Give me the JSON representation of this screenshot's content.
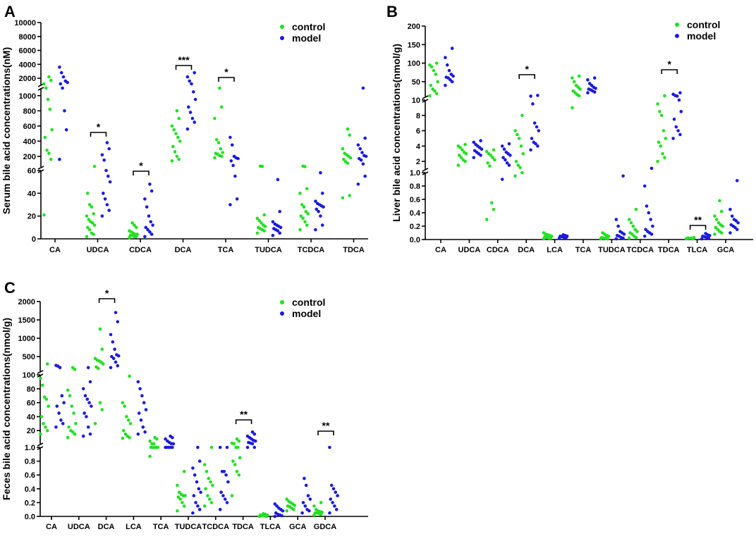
{
  "colors": {
    "control": "#22e022",
    "model": "#1a1adf"
  },
  "chart_data": [
    {
      "panel": "A",
      "type": "scatter",
      "ylabel": "Serum bile acid concentrations(nM)",
      "legend": [
        "control",
        "model"
      ],
      "categories": [
        "CA",
        "UDCA",
        "CDCA",
        "DCA",
        "TCA",
        "TUDCA",
        "TCDCA",
        "TDCA"
      ],
      "segments": [
        {
          "range": [
            0,
            60
          ],
          "ticks": [
            0,
            20,
            40,
            60
          ]
        },
        {
          "range": [
            60,
            1100
          ],
          "ticks": [
            200,
            400,
            600,
            800,
            1000
          ]
        },
        {
          "range": [
            1100,
            10000
          ],
          "ticks": [
            2000,
            4000,
            6000,
            8000,
            10000
          ]
        }
      ],
      "series": [
        {
          "name": "control",
          "values": [
            [
              21,
              160,
              240,
              280,
              450,
              550,
              820,
              950,
              1100,
              1200,
              1700,
              2200
            ],
            [
              2,
              4,
              5,
              8,
              10,
              12,
              14,
              15,
              17,
              20,
              22,
              28,
              30,
              40,
              67
            ],
            [
              1,
              2,
              2,
              3,
              3,
              4,
              4,
              5,
              6,
              7,
              10,
              12,
              14
            ],
            [
              140,
              160,
              200,
              260,
              330,
              400,
              450,
              500,
              550,
              600,
              700,
              800
            ],
            [
              180,
              200,
              210,
              230,
              240,
              250,
              300,
              380,
              420,
              700,
              850,
              1100
            ],
            [
              5,
              7,
              8,
              9,
              10,
              11,
              12,
              14,
              16,
              18,
              21,
              68,
              70
            ],
            [
              8,
              12,
              15,
              18,
              20,
              22,
              24,
              28,
              30,
              40,
              44,
              65,
              70
            ],
            [
              36,
              38,
              110,
              130,
              160,
              180,
              200,
              220,
              240,
              300,
              480,
              560
            ]
          ]
        },
        {
          "name": "model",
          "values": [
            [
              160,
              550,
              800,
              1100,
              1200,
              1400,
              1600,
              2200,
              2800,
              3600
            ],
            [
              20,
              25,
              30,
              35,
              40,
              50,
              55,
              60,
              150,
              220,
              300,
              380
            ],
            [
              2,
              4,
              6,
              8,
              10,
              12,
              15,
              20,
              28,
              35,
              42,
              48
            ],
            [
              560,
              650,
              700,
              780,
              850,
              950,
              1050,
              1200,
              1600,
              2200,
              2800
            ],
            [
              30,
              35,
              55,
              80,
              140,
              170,
              180,
              200,
              350,
              450
            ],
            [
              3,
              5,
              7,
              8,
              9,
              10,
              11,
              12,
              13,
              15,
              24,
              52
            ],
            [
              8,
              12,
              20,
              24,
              26,
              28,
              29,
              30,
              31,
              33,
              40,
              58
            ],
            [
              48,
              55,
              100,
              150,
              170,
              200,
              210,
              250,
              300,
              350,
              440,
              1100
            ]
          ]
        }
      ],
      "significance": [
        {
          "category": "UDCA",
          "label": "*"
        },
        {
          "category": "CDCA",
          "label": "*"
        },
        {
          "category": "DCA",
          "label": "***"
        },
        {
          "category": "TCA",
          "label": "*"
        }
      ]
    },
    {
      "panel": "B",
      "type": "scatter",
      "ylabel": "Liver bile acid concentrations(nmol/g)",
      "legend": [
        "control",
        "model"
      ],
      "categories": [
        "CA",
        "UDCA",
        "CDCA",
        "DCA",
        "LCA",
        "TCA",
        "TUDCA",
        "TCDCA",
        "TDCA",
        "TLCA",
        "GCA"
      ],
      "segments": [
        {
          "range": [
            0,
            1.0
          ],
          "ticks": [
            0.0,
            0.2,
            0.4,
            0.6,
            0.8,
            1.0
          ]
        },
        {
          "range": [
            1.0,
            10
          ],
          "ticks": [
            2,
            4,
            6,
            8,
            10
          ]
        },
        {
          "range": [
            10,
            200
          ],
          "ticks": [
            50,
            100,
            150,
            200
          ]
        }
      ],
      "series": [
        {
          "name": "control",
          "values": [
            [
              12,
              18,
              25,
              30,
              40,
              50,
              70,
              80,
              90,
              95,
              100
            ],
            [
              1.5,
              2,
              2.2,
              2.5,
              2.8,
              3,
              3.2,
              3.5,
              3.8,
              4,
              4.2
            ],
            [
              0.3,
              0.45,
              0.55,
              1.4,
              1.8,
              2.2,
              2.5,
              2.8,
              3,
              3.3,
              3.5
            ],
            [
              0.95,
              1,
              1.2,
              1.5,
              2,
              3,
              4,
              5,
              5.5,
              6,
              8
            ],
            [
              0.01,
              0.02,
              0.02,
              0.03,
              0.04,
              0.05,
              0.06,
              0.07,
              0.08,
              0.1
            ],
            [
              9,
              12,
              15,
              20,
              25,
              30,
              35,
              40,
              50,
              60,
              65
            ],
            [
              0.01,
              0.01,
              0.02,
              0.02,
              0.03,
              0.05,
              0.06,
              0.08,
              0.1
            ],
            [
              0.02,
              0.03,
              0.05,
              0.08,
              0.1,
              0.12,
              0.15,
              0.2,
              0.25,
              0.3,
              0.45
            ],
            [
              2,
              2.5,
              3,
              4,
              4.5,
              5,
              6,
              8,
              8.5,
              9.5,
              12
            ],
            [
              0.01,
              0.01,
              0.02,
              0.02,
              0.02,
              0.03
            ],
            [
              0.08,
              0.1,
              0.12,
              0.15,
              0.18,
              0.2,
              0.22,
              0.25,
              0.3,
              0.35,
              0.42,
              0.58
            ]
          ]
        },
        {
          "name": "model",
          "values": [
            [
              40,
              50,
              55,
              60,
              62,
              65,
              70,
              80,
              95,
              115,
              140
            ],
            [
              2.5,
              2.8,
              3,
              3.2,
              3.4,
              3.6,
              3.8,
              4,
              4.2,
              4.5,
              4.7
            ],
            [
              0.9,
              1.5,
              1.8,
              2.2,
              2.5,
              2.8,
              3,
              3.2,
              3.6,
              4,
              4.3
            ],
            [
              3.5,
              4,
              4.3,
              4.5,
              5,
              6,
              6.5,
              7,
              9.5,
              11,
              13
            ],
            [
              0.02,
              0.03,
              0.03,
              0.04,
              0.05,
              0.05,
              0.06,
              0.07
            ],
            [
              20,
              22,
              25,
              28,
              30,
              32,
              35,
              40,
              45,
              55,
              60
            ],
            [
              0.01,
              0.02,
              0.03,
              0.05,
              0.06,
              0.08,
              0.1,
              0.12,
              0.2,
              0.3,
              0.95
            ],
            [
              0.05,
              0.08,
              0.1,
              0.12,
              0.15,
              0.2,
              0.3,
              0.4,
              0.5,
              0.8,
              1.1
            ],
            [
              5,
              5.5,
              6,
              6.5,
              7.5,
              8.5,
              10,
              11,
              12.5,
              16,
              20
            ],
            [
              0.01,
              0.02,
              0.03,
              0.04,
              0.05,
              0.06,
              0.07,
              0.09
            ],
            [
              0.1,
              0.15,
              0.18,
              0.2,
              0.22,
              0.25,
              0.28,
              0.3,
              0.35,
              0.45,
              0.88
            ]
          ]
        }
      ],
      "significance": [
        {
          "category": "DCA",
          "label": "*"
        },
        {
          "category": "TDCA",
          "label": "*"
        },
        {
          "category": "TLCA",
          "label": "**"
        }
      ]
    },
    {
      "panel": "C",
      "type": "scatter",
      "ylabel": "Feces bile acid concentrations(nmol/g)",
      "legend": [
        "control",
        "model"
      ],
      "categories": [
        "CA",
        "UDCA",
        "DCA",
        "LCA",
        "TCA",
        "TUDCA",
        "TCDCA",
        "TDCA",
        "TLCA",
        "GCA",
        "GDCA"
      ],
      "segments": [
        {
          "range": [
            0,
            1.0
          ],
          "ticks": [
            0.0,
            0.2,
            0.4,
            0.6,
            0.8,
            1.0
          ]
        },
        {
          "range": [
            1.0,
            100
          ],
          "ticks": [
            20,
            40,
            60,
            80,
            100
          ]
        },
        {
          "range": [
            100,
            2000
          ],
          "ticks": [
            500,
            1000,
            1500,
            2000
          ]
        }
      ],
      "series": [
        {
          "name": "control",
          "values": [
            [
              15,
              20,
              25,
              30,
              40,
              55,
              65,
              68,
              85,
              95,
              300
            ],
            [
              10,
              15,
              18,
              20,
              25,
              30,
              45,
              55,
              70,
              78,
              150,
              200
            ],
            [
              30,
              50,
              60,
              180,
              220,
              300,
              350,
              380,
              400,
              450,
              700,
              1250
            ],
            [
              9,
              10,
              12,
              15,
              20,
              30,
              35,
              40,
              55,
              60,
              98
            ],
            [
              0.87,
              1.0,
              1.0,
              1.0,
              1.0,
              1.0,
              1.0,
              1.1,
              1.2,
              5,
              8,
              10
            ],
            [
              0.08,
              0.15,
              0.2,
              0.25,
              0.28,
              0.3,
              0.3,
              0.32,
              0.35,
              0.45,
              0.65
            ],
            [
              0.15,
              0.2,
              0.25,
              0.3,
              0.4,
              0.45,
              0.5,
              0.55,
              0.65,
              0.75,
              1.0
            ],
            [
              0.3,
              0.6,
              0.65,
              0.75,
              0.8,
              0.85,
              1.0,
              1.0,
              1.2,
              2,
              5,
              8
            ],
            [
              0.0,
              0.0,
              0.01,
              0.01,
              0.02,
              0.02,
              0.03,
              0.04
            ],
            [
              0.08,
              0.1,
              0.12,
              0.14,
              0.15,
              0.16,
              0.18,
              0.2,
              0.22,
              0.25
            ],
            [
              0.02,
              0.03,
              0.04,
              0.05,
              0.05,
              0.06,
              0.07,
              0.08,
              0.1,
              0.15,
              0.2
            ]
          ]
        },
        {
          "name": "model",
          "values": [
            [
              25,
              30,
              35,
              45,
              55,
              60,
              70,
              200,
              240,
              260
            ],
            [
              12,
              15,
              25,
              40,
              45,
              55,
              60,
              65,
              70,
              80,
              90,
              200
            ],
            [
              200,
              250,
              350,
              450,
              500,
              520,
              550,
              700,
              900,
              1100,
              1450,
              1700
            ],
            [
              15,
              18,
              25,
              35,
              45,
              50,
              60,
              70,
              80,
              90
            ],
            [
              1.0,
              1.0,
              1.0,
              1.0,
              1.0,
              1.1,
              1.2,
              3,
              5,
              8,
              10,
              12
            ],
            [
              0.05,
              0.1,
              0.15,
              0.2,
              0.3,
              0.35,
              0.4,
              0.5,
              0.6,
              0.7,
              0.8,
              1.0
            ],
            [
              0.1,
              0.2,
              0.25,
              0.3,
              0.35,
              0.5,
              0.6,
              0.65,
              0.65,
              1.0,
              1.0
            ],
            [
              1.0,
              1.0,
              1.2,
              2,
              3,
              5,
              6,
              8,
              10,
              12,
              15,
              18
            ],
            [
              0.0,
              0.01,
              0.02,
              0.03,
              0.05,
              0.08,
              0.1,
              0.12,
              0.15,
              0.18
            ],
            [
              0.05,
              0.08,
              0.1,
              0.15,
              0.2,
              0.25,
              0.3,
              0.45,
              0.55
            ],
            [
              0.05,
              0.1,
              0.15,
              0.2,
              0.25,
              0.3,
              0.35,
              0.4,
              0.45,
              1.0
            ]
          ]
        }
      ],
      "significance": [
        {
          "category": "DCA",
          "label": "*"
        },
        {
          "category": "TDCA",
          "label": "**"
        },
        {
          "category": "GDCA",
          "label": "**"
        }
      ]
    }
  ]
}
